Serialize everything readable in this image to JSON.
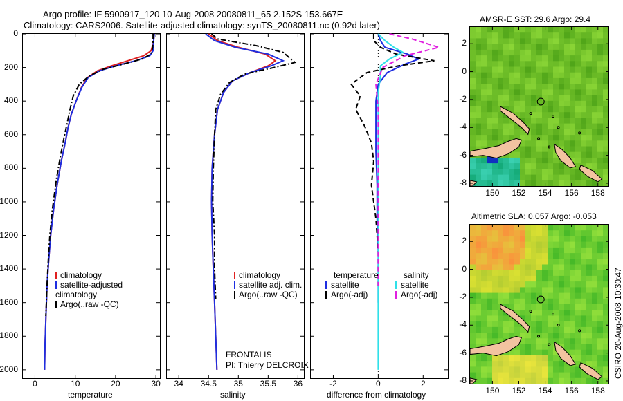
{
  "title": {
    "line1": "Argo profile: IF 5900917_120 10-Aug-2008 20080811_65 2.152S 153.667E",
    "line2": "Climatology: CARS2006. Satellite-adjusted climatology: synTS_20080811.nc (0.92d later)"
  },
  "credit": "CSIRO 20-Aug-2008 10:30:47",
  "colors": {
    "climatology": "#e02020",
    "satellite": "#1e2ee0",
    "argo": "#000000",
    "sal_satellite": "#30e0e8",
    "sal_argo": "#e020e0",
    "land": "#f2c3a0"
  },
  "chart_data": [
    {
      "type": "line",
      "id": "temperature",
      "xlabel": "temperature",
      "ylabel": "",
      "xlim": [
        -3,
        31
      ],
      "ylim": [
        2050,
        0
      ],
      "xticks": [
        "0",
        "10",
        "20",
        "30"
      ],
      "xtick_values": [
        0,
        10,
        20,
        30
      ],
      "yticks": [
        "0",
        "200",
        "400",
        "600",
        "800",
        "1000",
        "1200",
        "1400",
        "1600",
        "1800",
        "2000"
      ],
      "ytick_values": [
        0,
        200,
        400,
        600,
        800,
        1000,
        1200,
        1400,
        1600,
        1800,
        2000
      ],
      "legend": [
        "climatology",
        "satellite-adjusted climatology",
        "Argo(..raw -QC)"
      ],
      "series": [
        {
          "name": "climatology",
          "style": "solid",
          "color_key": "climatology",
          "x": [
            29.6,
            29.4,
            28.8,
            27.0,
            23.0,
            19.0,
            15.5,
            13.0,
            11.5,
            10.2,
            9.0,
            8.2,
            7.5,
            6.6,
            5.5,
            4.6,
            3.9,
            3.4,
            3.0,
            2.7,
            2.5,
            2.4
          ],
          "y": [
            0,
            50,
            100,
            130,
            160,
            190,
            220,
            260,
            320,
            400,
            480,
            560,
            650,
            750,
            900,
            1050,
            1200,
            1350,
            1500,
            1700,
            1850,
            2000
          ]
        },
        {
          "name": "satellite-adjusted climatology",
          "style": "solid",
          "color_key": "satellite",
          "x": [
            29.6,
            29.4,
            29.3,
            28.5,
            25.0,
            20.0,
            16.0,
            13.2,
            11.6,
            10.2,
            9.0,
            8.2,
            7.5,
            6.6,
            5.5,
            4.6,
            3.9,
            3.4,
            3.0,
            2.7,
            2.5,
            2.4
          ],
          "y": [
            0,
            50,
            100,
            130,
            160,
            190,
            220,
            260,
            320,
            400,
            480,
            560,
            650,
            750,
            900,
            1050,
            1200,
            1350,
            1500,
            1700,
            1850,
            2000
          ]
        },
        {
          "name": "Argo(..raw -QC)",
          "style": "dash-dot",
          "color_key": "argo",
          "x": [
            29.3,
            29.3,
            29.2,
            28.8,
            26.5,
            22.0,
            17.0,
            13.5,
            11.0,
            9.5,
            8.7,
            8.0,
            7.2,
            6.3,
            5.3,
            4.3,
            3.7,
            3.3,
            3.0,
            2.7
          ],
          "y": [
            0,
            40,
            80,
            120,
            150,
            180,
            210,
            250,
            300,
            370,
            450,
            530,
            620,
            730,
            870,
            1050,
            1200,
            1350,
            1500,
            1680
          ]
        }
      ]
    },
    {
      "type": "line",
      "id": "salinity",
      "xlabel": "salinity",
      "ylabel": "",
      "xlim": [
        33.8,
        36.1
      ],
      "ylim": [
        2050,
        0
      ],
      "xticks": [
        "34",
        "34.5",
        "35",
        "35.5",
        "36"
      ],
      "xtick_values": [
        34,
        34.5,
        35,
        35.5,
        36
      ],
      "legend": [
        "climatology",
        "satellite adj. clim.",
        "Argo(..raw -QC)"
      ],
      "annotations": [
        "FRONTALIS",
        "PI: Thierry DELCROIX"
      ],
      "series": [
        {
          "name": "climatology",
          "style": "solid",
          "color_key": "climatology",
          "x": [
            34.5,
            34.65,
            35.0,
            35.45,
            35.62,
            35.5,
            35.2,
            34.9,
            34.75,
            34.65,
            34.6,
            34.56,
            34.55,
            34.56,
            34.58,
            34.6,
            34.62,
            34.64
          ],
          "y": [
            0,
            40,
            80,
            120,
            160,
            190,
            230,
            280,
            350,
            450,
            600,
            800,
            1000,
            1200,
            1400,
            1600,
            1800,
            2000
          ]
        },
        {
          "name": "satellite adj. clim.",
          "style": "solid",
          "color_key": "satellite",
          "x": [
            34.45,
            34.6,
            34.95,
            35.5,
            35.75,
            35.55,
            35.2,
            34.9,
            34.75,
            34.65,
            34.6,
            34.56,
            34.55,
            34.56,
            34.58,
            34.6,
            34.62,
            34.64
          ],
          "y": [
            0,
            40,
            80,
            120,
            160,
            190,
            230,
            280,
            350,
            450,
            600,
            800,
            1000,
            1200,
            1400,
            1600,
            1800,
            2000
          ]
        },
        {
          "name": "Argo(..raw -QC)",
          "style": "dash-dot",
          "color_key": "argo",
          "x": [
            34.55,
            34.65,
            35.3,
            35.75,
            35.95,
            35.6,
            35.1,
            34.85,
            34.7,
            34.62,
            34.6,
            34.58,
            34.57,
            34.6,
            34.6,
            34.62
          ],
          "y": [
            0,
            30,
            70,
            110,
            170,
            200,
            240,
            290,
            360,
            450,
            600,
            800,
            1000,
            1200,
            1400,
            1580
          ]
        }
      ]
    },
    {
      "type": "line",
      "id": "difference",
      "xlabel": "difference from climatology",
      "ylabel": "",
      "xlim": [
        -3,
        3.1
      ],
      "ylim": [
        2050,
        0
      ],
      "xticks": [
        "-2",
        "0",
        "2"
      ],
      "xtick_values": [
        -2,
        0,
        2
      ],
      "legend_groups": [
        {
          "header": "temperature",
          "items": [
            "satellite",
            "Argo(-adj)"
          ]
        },
        {
          "header": "salinity",
          "items": [
            "satellite",
            "Argo(-adj)"
          ]
        }
      ],
      "series": [
        {
          "name": "temperature satellite",
          "style": "solid",
          "color_key": "satellite",
          "x": [
            0,
            0.1,
            0.3,
            1.3,
            1.8,
            1.2,
            0.4,
            0.0,
            -0.1,
            -0.1,
            -0.1,
            -0.05,
            -0.05,
            0.0,
            0.0,
            0.0
          ],
          "y": [
            0,
            40,
            80,
            120,
            150,
            180,
            230,
            300,
            400,
            550,
            700,
            900,
            1100,
            1300,
            1500,
            1600
          ]
        },
        {
          "name": "temperature Argo(-adj)",
          "style": "dashed",
          "color_key": "argo",
          "x": [
            -0.2,
            -0.2,
            0.1,
            0.8,
            2.5,
            0.9,
            -0.5,
            -1.2,
            -0.8,
            -1.0,
            -0.6,
            -0.3,
            -0.2,
            -0.3,
            -0.1,
            0.0,
            0.0
          ],
          "y": [
            0,
            40,
            80,
            120,
            160,
            190,
            230,
            300,
            370,
            450,
            550,
            650,
            760,
            900,
            1100,
            1300,
            1500
          ]
        },
        {
          "name": "salinity satellite",
          "style": "solid",
          "color_key": "sal_satellite",
          "x": [
            0,
            0.3,
            0.7,
            1.1,
            0.5,
            0.1,
            0.1,
            0.0,
            0.0,
            0.0,
            0.0,
            0.0,
            0.0,
            0.0
          ],
          "y": [
            0,
            40,
            80,
            110,
            150,
            190,
            250,
            350,
            500,
            800,
            1100,
            1400,
            1700,
            2000
          ]
        },
        {
          "name": "salinity Argo(-adj)",
          "style": "dashed",
          "color_key": "sal_argo",
          "x": [
            0.5,
            1.5,
            2.7,
            1.2,
            0.2,
            -0.1,
            0.0,
            0.0,
            0.0,
            0.0,
            0.0
          ],
          "y": [
            0,
            30,
            80,
            130,
            200,
            300,
            450,
            650,
            900,
            1200,
            1500
          ]
        }
      ]
    },
    {
      "type": "heatmap",
      "id": "sst_map",
      "title": "AMSR-E SST: 29.6  Argo: 29.4",
      "xlim": [
        148.3,
        158.8
      ],
      "ylim": [
        -8.2,
        3.2
      ],
      "xticks": [
        "150",
        "152",
        "154",
        "156",
        "158"
      ],
      "xtick_values": [
        150,
        152,
        154,
        156,
        158
      ],
      "yticks": [
        "2",
        "0",
        "-2",
        "-4",
        "-6",
        "-8"
      ],
      "ytick_values": [
        2,
        0,
        -2,
        -4,
        -6,
        -8
      ],
      "marker": {
        "lon": 153.667,
        "lat": -2.152
      }
    },
    {
      "type": "heatmap",
      "id": "sla_map",
      "title": "Altimetric SLA: 0.057  Argo: -0.053",
      "xlim": [
        148.3,
        158.8
      ],
      "ylim": [
        -8.2,
        3.2
      ],
      "xticks": [
        "150",
        "152",
        "154",
        "156",
        "158"
      ],
      "xtick_values": [
        150,
        152,
        154,
        156,
        158
      ],
      "yticks": [
        "2",
        "0",
        "-2",
        "-4",
        "-6",
        "-8"
      ],
      "ytick_values": [
        2,
        0,
        -2,
        -4,
        -6,
        -8
      ],
      "marker": {
        "lon": 153.667,
        "lat": -2.152
      }
    }
  ]
}
